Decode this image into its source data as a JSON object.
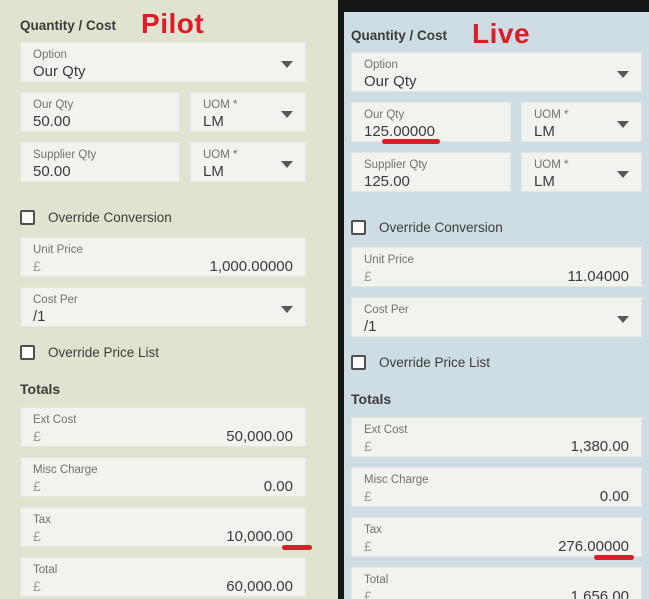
{
  "colors": {
    "left_bg": "#e0e3cf",
    "right_bg": "#cedde4",
    "field_bg": "#f2f2ee",
    "annotation_red": "#e01b28",
    "bar_black": "#151515"
  },
  "panels": {
    "pilot": {
      "title": "Quantity / Cost",
      "tag": "Pilot",
      "option": {
        "label": "Option",
        "value": "Our Qty"
      },
      "our_qty": {
        "label": "Our Qty",
        "value": "50.00",
        "underlined": false
      },
      "our_uom": {
        "label": "UOM *",
        "value": "LM"
      },
      "supplier_qty": {
        "label": "Supplier Qty",
        "value": "50.00"
      },
      "supplier_uom": {
        "label": "UOM *",
        "value": "LM"
      },
      "override_conversion": {
        "label": "Override Conversion",
        "checked": false
      },
      "unit_price": {
        "label": "Unit Price",
        "currency": "£",
        "value": "1,000.00000"
      },
      "cost_per": {
        "label": "Cost Per",
        "value": "/1"
      },
      "override_price_list": {
        "label": "Override Price List",
        "checked": false
      },
      "totals_heading": "Totals",
      "ext_cost": {
        "label": "Ext Cost",
        "currency": "£",
        "value": "50,000.00"
      },
      "misc_charge": {
        "label": "Misc Charge",
        "currency": "£",
        "value": "0.00"
      },
      "tax": {
        "label": "Tax",
        "currency": "£",
        "value": "10,000.00",
        "underlined": true
      },
      "total": {
        "label": "Total",
        "currency": "£",
        "value": "60,000.00"
      }
    },
    "live": {
      "title": "Quantity / Cost",
      "tag": "Live",
      "option": {
        "label": "Option",
        "value": "Our Qty"
      },
      "our_qty": {
        "label": "Our Qty",
        "value": "125.00000",
        "underlined": true
      },
      "our_uom": {
        "label": "UOM *",
        "value": "LM"
      },
      "supplier_qty": {
        "label": "Supplier Qty",
        "value": "125.00"
      },
      "supplier_uom": {
        "label": "UOM *",
        "value": "LM"
      },
      "override_conversion": {
        "label": "Override Conversion",
        "checked": false
      },
      "unit_price": {
        "label": "Unit Price",
        "currency": "£",
        "value": "11.04000"
      },
      "cost_per": {
        "label": "Cost Per",
        "value": "/1"
      },
      "override_price_list": {
        "label": "Override Price List",
        "checked": false
      },
      "totals_heading": "Totals",
      "ext_cost": {
        "label": "Ext Cost",
        "currency": "£",
        "value": "1,380.00"
      },
      "misc_charge": {
        "label": "Misc Charge",
        "currency": "£",
        "value": "0.00"
      },
      "tax": {
        "label": "Tax",
        "currency": "£",
        "value": "276.00000",
        "underlined": true
      },
      "total": {
        "label": "Total",
        "currency": "£",
        "value": "1,656.00"
      }
    }
  }
}
